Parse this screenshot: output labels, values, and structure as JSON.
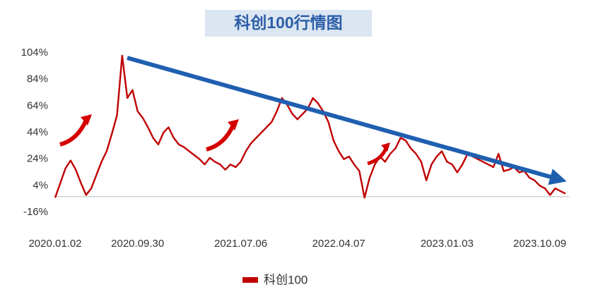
{
  "chart_data": {
    "type": "line",
    "title": "科创100行情图",
    "categories": [
      "2020.01.02",
      null,
      null,
      null,
      null,
      null,
      null,
      null,
      null,
      null,
      null,
      null,
      null,
      null,
      null,
      null,
      "2020.09.30",
      null,
      null,
      null,
      null,
      null,
      null,
      null,
      null,
      null,
      null,
      null,
      null,
      null,
      null,
      null,
      null,
      null,
      null,
      null,
      "2021.07.06",
      null,
      null,
      null,
      null,
      null,
      null,
      null,
      null,
      null,
      null,
      null,
      null,
      null,
      null,
      null,
      null,
      null,
      null,
      "2022.04.07",
      null,
      null,
      null,
      null,
      null,
      null,
      null,
      null,
      null,
      null,
      null,
      null,
      null,
      null,
      null,
      null,
      null,
      null,
      null,
      null,
      "2023.01.03",
      null,
      null,
      null,
      null,
      null,
      null,
      null,
      null,
      null,
      null,
      null,
      null,
      null,
      null,
      null,
      null,
      null,
      "2023.10.09",
      null,
      null,
      null,
      null,
      null
    ],
    "series": [
      {
        "name": "科创100",
        "color": "#c00000",
        "values": [
          -5,
          6,
          17,
          23,
          16,
          6,
          -3,
          2,
          12,
          22,
          30,
          43,
          57,
          102,
          70,
          76,
          60,
          55,
          48,
          40,
          35,
          44,
          48,
          40,
          35,
          33,
          30,
          27,
          24,
          20,
          25,
          22,
          20,
          16,
          20,
          18,
          22,
          30,
          36,
          40,
          44,
          48,
          52,
          60,
          70,
          65,
          58,
          54,
          58,
          62,
          70,
          66,
          60,
          52,
          38,
          30,
          24,
          26,
          20,
          15,
          -5,
          10,
          20,
          26,
          22,
          28,
          32,
          40,
          38,
          32,
          28,
          22,
          8,
          20,
          26,
          30,
          22,
          20,
          14,
          20,
          28,
          26,
          24,
          22,
          20,
          18,
          28,
          15,
          16,
          18,
          14,
          15,
          10,
          8,
          4,
          2,
          -3,
          2,
          0,
          -2
        ]
      }
    ],
    "ylim": [
      -16,
      104
    ],
    "yticks": [
      {
        "value": -16,
        "label": "-16%"
      },
      {
        "value": 4,
        "label": "4%"
      },
      {
        "value": 24,
        "label": "24%"
      },
      {
        "value": 44,
        "label": "44%"
      },
      {
        "value": 64,
        "label": "64%"
      },
      {
        "value": 84,
        "label": "84%"
      },
      {
        "value": 104,
        "label": "104%"
      }
    ],
    "grid": false
  }
}
